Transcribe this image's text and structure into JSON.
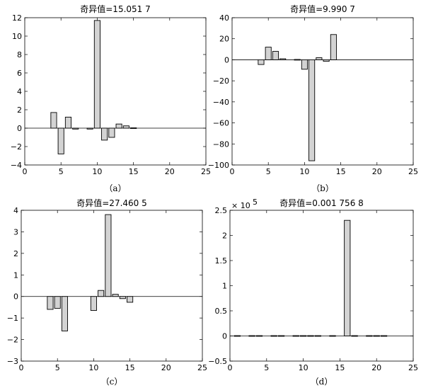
{
  "chart_data": [
    {
      "type": "bar",
      "title": "奇异值=15.051 7",
      "label": "（a）",
      "xlim": [
        0,
        25
      ],
      "ylim": [
        -4,
        12
      ],
      "xticks": [
        0,
        5,
        10,
        15,
        20,
        25
      ],
      "yticks": [
        -4,
        -2,
        0,
        2,
        4,
        6,
        8,
        10,
        12
      ],
      "x": [
        4,
        5,
        6,
        7,
        9,
        10,
        11,
        12,
        13,
        14,
        15
      ],
      "values": [
        1.7,
        -2.8,
        1.2,
        -0.1,
        -0.1,
        11.7,
        -1.3,
        -1.0,
        0.45,
        0.25,
        -0.05
      ]
    },
    {
      "type": "bar",
      "title": "奇异值=9.990 7",
      "label": "（b）",
      "xlim": [
        0,
        25
      ],
      "ylim": [
        -100,
        40
      ],
      "xticks": [
        0,
        5,
        10,
        15,
        20,
        25
      ],
      "yticks": [
        -100,
        -80,
        -60,
        -40,
        -20,
        0,
        20,
        40
      ],
      "x": [
        4,
        5,
        6,
        7,
        9,
        10,
        11,
        12,
        13,
        14
      ],
      "values": [
        -4.5,
        12,
        8,
        1,
        0.5,
        -9,
        -96,
        2,
        -1.5,
        24
      ]
    },
    {
      "type": "bar",
      "title": "奇异值=27.460 5",
      "label": "（c）",
      "xlim": [
        0,
        25
      ],
      "ylim": [
        -3,
        4
      ],
      "xticks": [
        0,
        5,
        10,
        15,
        20,
        25
      ],
      "yticks": [
        -3,
        -2,
        -1,
        0,
        1,
        2,
        3,
        4
      ],
      "x": [
        4,
        5,
        6,
        10,
        11,
        12,
        13,
        14,
        15
      ],
      "values": [
        -0.6,
        -0.55,
        -1.6,
        -0.65,
        0.28,
        3.8,
        0.1,
        -0.1,
        -0.27
      ]
    },
    {
      "type": "bar",
      "title": "奇异值=0.001 756 8",
      "label": "（d）",
      "multiplier": "× 10",
      "multiplier_exp": "5",
      "xlim": [
        0,
        25
      ],
      "ylim": [
        -0.5,
        2.5
      ],
      "xticks": [
        0,
        5,
        10,
        15,
        20,
        25
      ],
      "yticks": [
        -0.5,
        0,
        0.5,
        1,
        1.5,
        2,
        2.5
      ],
      "x": [
        1,
        3,
        4,
        6,
        7,
        9,
        10,
        11,
        12,
        14,
        16,
        17,
        19,
        20,
        21
      ],
      "values": [
        0.005,
        0.005,
        0.005,
        0.005,
        0.005,
        0.005,
        0.005,
        0.005,
        0.005,
        0.005,
        2.3,
        0.005,
        0.005,
        0.005,
        0.005
      ]
    }
  ]
}
